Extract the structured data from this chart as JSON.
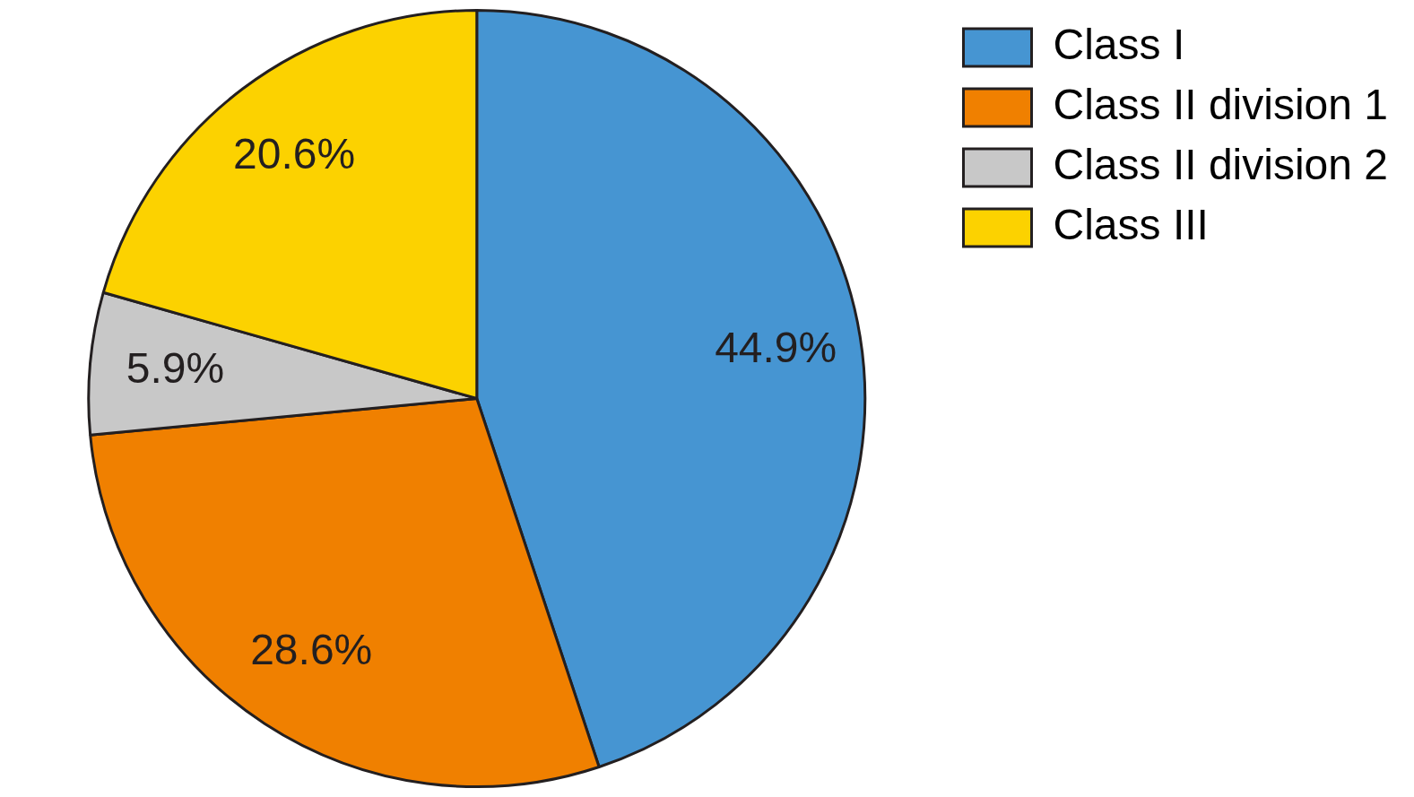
{
  "chart_data": {
    "type": "pie",
    "categories": [
      "Class I",
      "Class II division 1",
      "Class II division 2",
      "Class III"
    ],
    "values": [
      44.9,
      28.6,
      5.9,
      20.6
    ],
    "colors": [
      "#4695d2",
      "#f08000",
      "#c8c8c8",
      "#fcd200"
    ],
    "value_labels": [
      "44.9%",
      "28.6%",
      "5.9%",
      "20.6%"
    ],
    "legend": "top right"
  }
}
